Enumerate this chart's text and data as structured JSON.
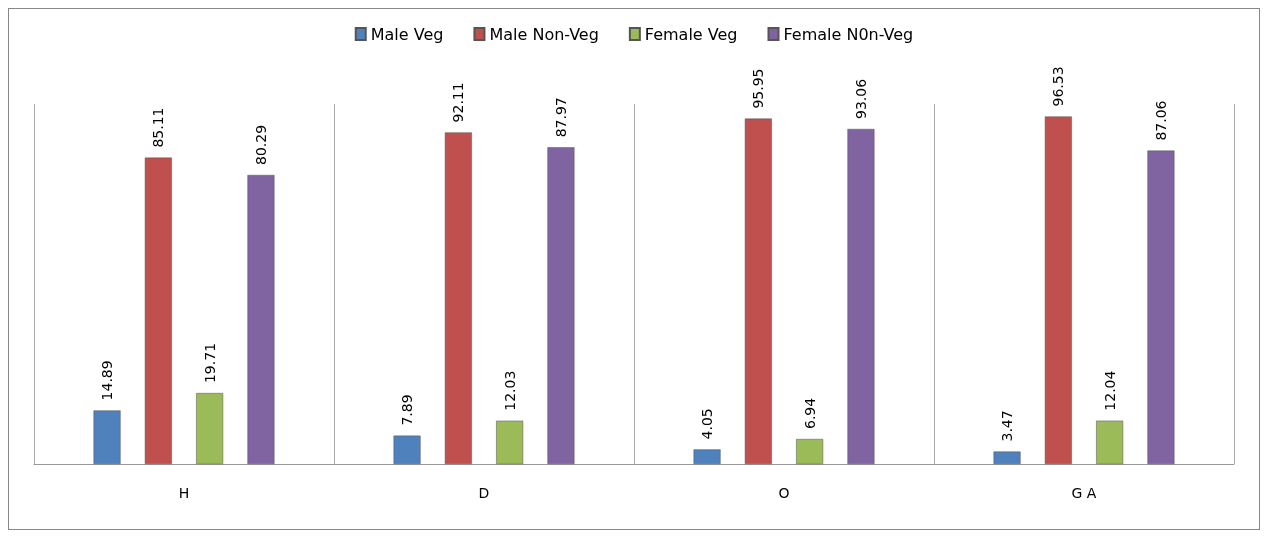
{
  "chart_data": {
    "type": "bar",
    "categories": [
      "H",
      "D",
      "O",
      "G A"
    ],
    "series": [
      {
        "name": "Male Veg",
        "color": "#4f81bd",
        "values": [
          14.89,
          7.89,
          4.05,
          3.47
        ]
      },
      {
        "name": "Male Non-Veg",
        "color": "#c0504d",
        "values": [
          85.11,
          92.11,
          95.95,
          96.53
        ]
      },
      {
        "name": "Female Veg",
        "color": "#9bbb59",
        "values": [
          19.71,
          12.03,
          6.94,
          12.04
        ]
      },
      {
        "name": "Female N0n-Veg",
        "color": "#8064a2",
        "values": [
          80.29,
          87.97,
          93.06,
          87.06
        ]
      }
    ],
    "data_labels": true,
    "grid": "x",
    "legend": "top",
    "tick_labels": "x"
  }
}
